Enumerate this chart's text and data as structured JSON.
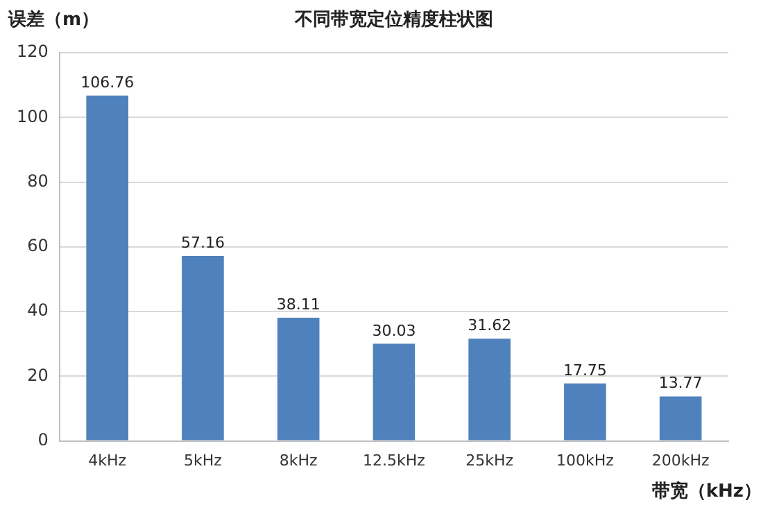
{
  "chart_data": {
    "type": "bar",
    "title": "不同带宽定位精度柱状图",
    "xlabel": "带宽（kHz）",
    "ylabel": "误差（m）",
    "categories": [
      "4kHz",
      "5kHz",
      "8kHz",
      "12.5kHz",
      "25kHz",
      "100kHz",
      "200kHz"
    ],
    "values": [
      106.76,
      57.16,
      38.11,
      30.03,
      31.62,
      17.75,
      13.77
    ],
    "color": "#4f81bd",
    "ylim": [
      0,
      120
    ],
    "yticks": [
      0,
      20,
      40,
      60,
      80,
      100,
      120
    ],
    "grid": "y",
    "data_labels": true,
    "legend": false
  }
}
